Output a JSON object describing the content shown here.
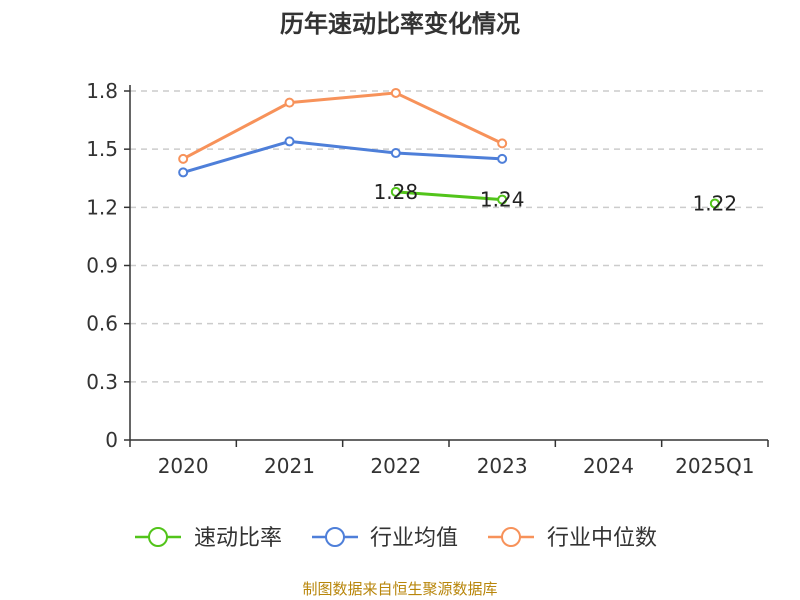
{
  "chart_data": {
    "type": "line",
    "title": "历年速动比率变化情况",
    "categories": [
      "2020",
      "2021",
      "2022",
      "2023",
      "2024",
      "2025Q1"
    ],
    "ylim": [
      0,
      1.8
    ],
    "yticks": [
      "0",
      "0.3",
      "0.6",
      "0.9",
      "1.2",
      "1.5",
      "1.8"
    ],
    "grid": true,
    "legend_position": "bottom",
    "series": [
      {
        "name": "速动比率",
        "color": "#52c41a",
        "values": [
          null,
          null,
          1.28,
          1.24,
          null,
          1.22
        ],
        "labels": [
          "",
          "",
          "1.28",
          "1.24",
          "",
          "1.22"
        ]
      },
      {
        "name": "行业均值",
        "color": "#4e7fd9",
        "values": [
          1.38,
          1.54,
          1.48,
          1.45,
          null,
          null
        ],
        "labels": [
          "",
          "",
          "",
          "",
          "",
          ""
        ]
      },
      {
        "name": "行业中位数",
        "color": "#f7925a",
        "values": [
          1.45,
          1.74,
          1.79,
          1.53,
          null,
          null
        ],
        "labels": [
          "",
          "",
          "",
          "",
          "",
          ""
        ]
      }
    ]
  },
  "source": "制图数据来自恒生聚源数据库"
}
